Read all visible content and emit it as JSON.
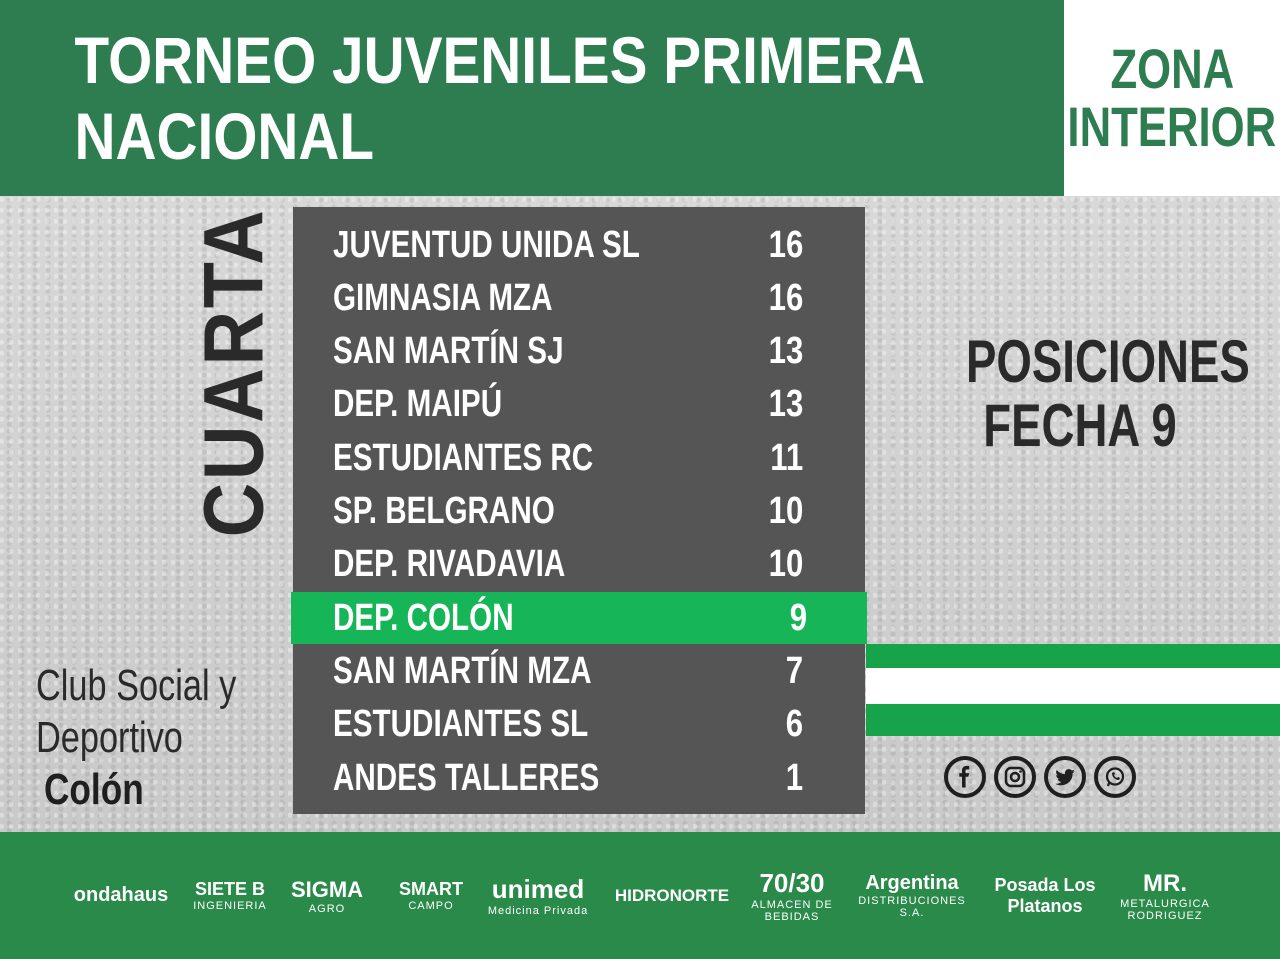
{
  "header": {
    "title": "TORNEO JUVENILES PRIMERA NACIONAL",
    "zona_line1": "ZONA",
    "zona_line2": "INTERIOR"
  },
  "category": "CUARTA",
  "standings": [
    {
      "team": "JUVENTUD UNIDA SL",
      "points": "16"
    },
    {
      "team": "GIMNASIA MZA",
      "points": "16"
    },
    {
      "team": "SAN MARTÍN SJ",
      "points": "13"
    },
    {
      "team": "DEP. MAIPÚ",
      "points": "13"
    },
    {
      "team": "ESTUDIANTES RC",
      "points": "11"
    },
    {
      "team": "SP. BELGRANO",
      "points": "10"
    },
    {
      "team": "DEP. RIVADAVIA",
      "points": "10"
    },
    {
      "team": "DEP. COLÓN",
      "points": "9",
      "highlight": true
    },
    {
      "team": "SAN MARTÍN MZA",
      "points": "7"
    },
    {
      "team": "ESTUDIANTES SL",
      "points": "6"
    },
    {
      "team": "ANDES TALLERES",
      "points": "1"
    }
  ],
  "side": {
    "line1": "POSICIONES",
    "line2": "FECHA 9"
  },
  "club": {
    "line1": "Club Social y",
    "line2": "Deportivo",
    "line3": "Colón"
  },
  "socials": [
    "facebook-icon",
    "instagram-icon",
    "twitter-icon",
    "whatsapp-icon"
  ],
  "sponsors": [
    {
      "name": "ondahaus",
      "sub": ""
    },
    {
      "name": "SIETE B",
      "sub": "INGENIERIA"
    },
    {
      "name": "SIGMA",
      "sub": "AGRO"
    },
    {
      "name": "SMART",
      "sub": "CAMPO"
    },
    {
      "name": "unimed",
      "sub": "Medicina Privada"
    },
    {
      "name": "HIDRONORTE",
      "sub": ""
    },
    {
      "name": "70/30",
      "sub": "ALMACEN DE BEBIDAS"
    },
    {
      "name": "Argentina",
      "sub": "DISTRIBUCIONES S.A."
    },
    {
      "name": "Posada Los Platanos",
      "sub": ""
    },
    {
      "name": "MR.",
      "sub": "METALURGICA RODRIGUEZ"
    }
  ],
  "colors": {
    "brand_green": "#2d7d50",
    "highlight_green": "#16b558",
    "panel": "#555555",
    "footer_green": "#2a8a4a"
  }
}
